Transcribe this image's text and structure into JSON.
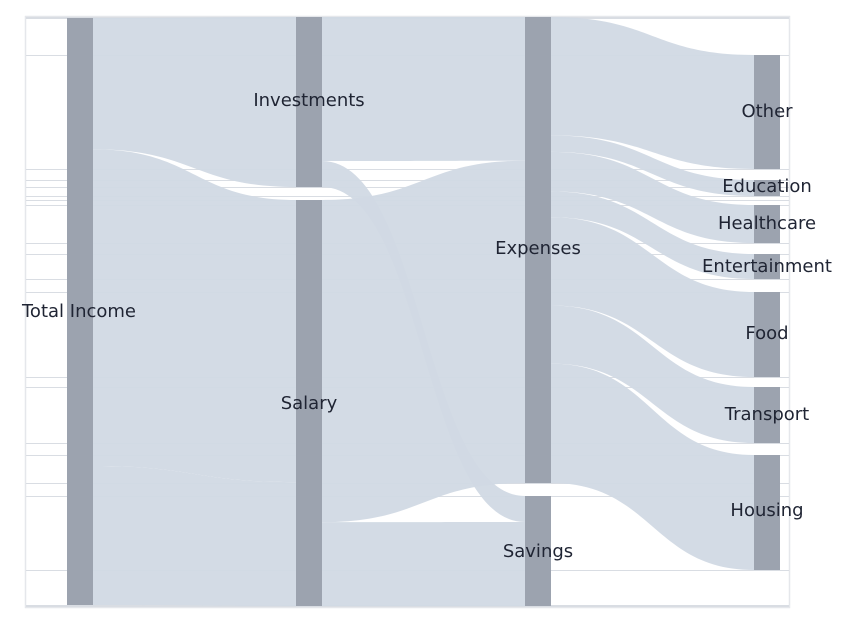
{
  "chart_data": {
    "type": "sankey",
    "title": "",
    "nodes": [
      {
        "id": "total",
        "label": "Total Income"
      },
      {
        "id": "investments",
        "label": "Investments"
      },
      {
        "id": "salary",
        "label": "Salary"
      },
      {
        "id": "expenses",
        "label": "Expenses"
      },
      {
        "id": "savings",
        "label": "Savings"
      },
      {
        "id": "other",
        "label": "Other"
      },
      {
        "id": "education",
        "label": "Education"
      },
      {
        "id": "healthcare",
        "label": "Healthcare"
      },
      {
        "id": "entertainment",
        "label": "Entertainment"
      },
      {
        "id": "food",
        "label": "Food"
      },
      {
        "id": "transport",
        "label": "Transport"
      },
      {
        "id": "housing",
        "label": "Housing"
      }
    ],
    "links": [
      {
        "source": "total",
        "target": "investments",
        "value": 17
      },
      {
        "source": "total",
        "target": "salary",
        "value": 41
      },
      {
        "source": "total",
        "target": "salary",
        "value": 18
      },
      {
        "source": "investments",
        "target": "expenses",
        "value": 14.4
      },
      {
        "source": "investments",
        "target": "savings",
        "value": 2.6
      },
      {
        "source": "salary",
        "target": "expenses",
        "value": 32.3
      },
      {
        "source": "salary",
        "target": "savings",
        "value": 8.4
      },
      {
        "source": "expenses",
        "target": "other",
        "value": 11.4
      },
      {
        "source": "expenses",
        "target": "education",
        "value": 1.6
      },
      {
        "source": "expenses",
        "target": "healthcare",
        "value": 3.8
      },
      {
        "source": "expenses",
        "target": "entertainment",
        "value": 2.5
      },
      {
        "source": "expenses",
        "target": "food",
        "value": 8.5
      },
      {
        "source": "expenses",
        "target": "transport",
        "value": 5.6
      },
      {
        "source": "expenses",
        "target": "housing",
        "value": 11.5
      }
    ],
    "colors": {
      "node": "#9ca3af",
      "link": "#d1d9e4",
      "frame": "#e5e7eb",
      "text": "#1f2433"
    }
  }
}
